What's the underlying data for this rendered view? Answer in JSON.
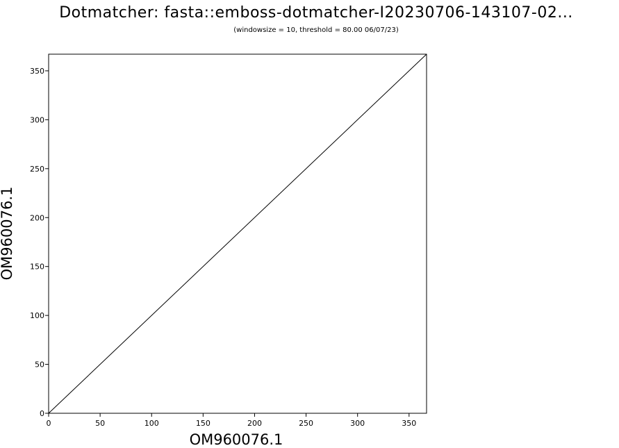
{
  "chart_data": {
    "type": "line",
    "title": "Dotmatcher: fasta::emboss-dotmatcher-I20230706-143107-02...",
    "subtitle": "(windowsize = 10, threshold = 80.00  06/07/23)",
    "xlabel": "OM960076.1",
    "ylabel": "OM960076.1",
    "xlim": [
      0,
      367
    ],
    "ylim": [
      0,
      367
    ],
    "x_ticks": [
      0,
      50,
      100,
      150,
      200,
      250,
      300,
      350
    ],
    "y_ticks": [
      0,
      50,
      100,
      150,
      200,
      250,
      300,
      350
    ],
    "grid": false,
    "series": [
      {
        "x": [
          0,
          367
        ],
        "y": [
          0,
          367
        ]
      }
    ]
  }
}
